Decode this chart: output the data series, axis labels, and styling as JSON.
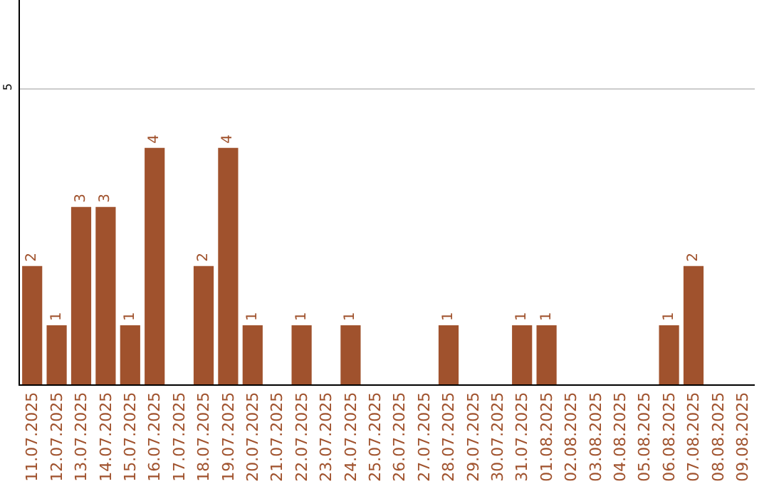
{
  "chart_data": {
    "type": "bar",
    "categories": [
      "11.07.2025",
      "12.07.2025",
      "13.07.2025",
      "14.07.2025",
      "15.07.2025",
      "16.07.2025",
      "17.07.2025",
      "18.07.2025",
      "19.07.2025",
      "20.07.2025",
      "21.07.2025",
      "22.07.2025",
      "23.07.2025",
      "24.07.2025",
      "25.07.2025",
      "26.07.2025",
      "27.07.2025",
      "28.07.2025",
      "29.07.2025",
      "30.07.2025",
      "31.07.2025",
      "01.08.2025",
      "02.08.2025",
      "03.08.2025",
      "04.08.2025",
      "05.08.2025",
      "06.08.2025",
      "07.08.2025",
      "08.08.2025",
      "09.08.2025"
    ],
    "values": [
      2,
      1,
      3,
      3,
      1,
      4,
      0,
      2,
      4,
      1,
      0,
      1,
      0,
      1,
      0,
      0,
      0,
      1,
      0,
      0,
      1,
      1,
      0,
      0,
      0,
      0,
      1,
      2,
      0,
      0
    ],
    "value_labels": [
      "2",
      "1",
      "3",
      "3",
      "1",
      "4",
      null,
      "2",
      "4",
      "1",
      null,
      "1",
      null,
      "1",
      null,
      null,
      null,
      "1",
      null,
      null,
      "1",
      "1",
      null,
      null,
      null,
      null,
      "1",
      "2",
      null,
      null
    ],
    "color": "#a0522d",
    "ylim": [
      0,
      6.5
    ],
    "yticks": [
      5
    ],
    "grid": "y"
  }
}
